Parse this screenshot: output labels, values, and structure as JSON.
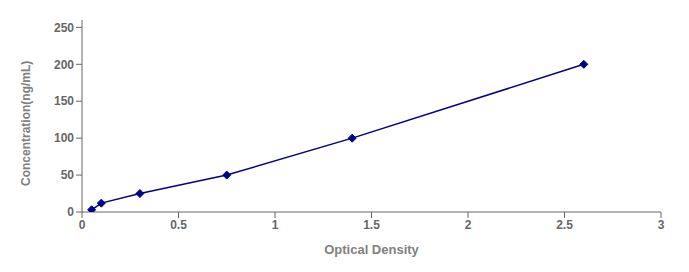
{
  "chart_data": {
    "type": "line",
    "x": [
      0.05,
      0.1,
      0.3,
      0.75,
      1.4,
      2.6
    ],
    "values": [
      3,
      12,
      25,
      50,
      100,
      200
    ],
    "color": "#00008B",
    "marker": "diamond",
    "line_style": "solid",
    "xlabel": "Optical Density",
    "ylabel": "Concentration(ng/mL)",
    "xlim": [
      0,
      3
    ],
    "ylim": [
      0,
      260
    ],
    "xticks": [
      0,
      0.5,
      1,
      1.5,
      2,
      2.5,
      3
    ],
    "yticks": [
      0,
      50,
      100,
      150,
      200,
      250
    ],
    "grid": false
  }
}
